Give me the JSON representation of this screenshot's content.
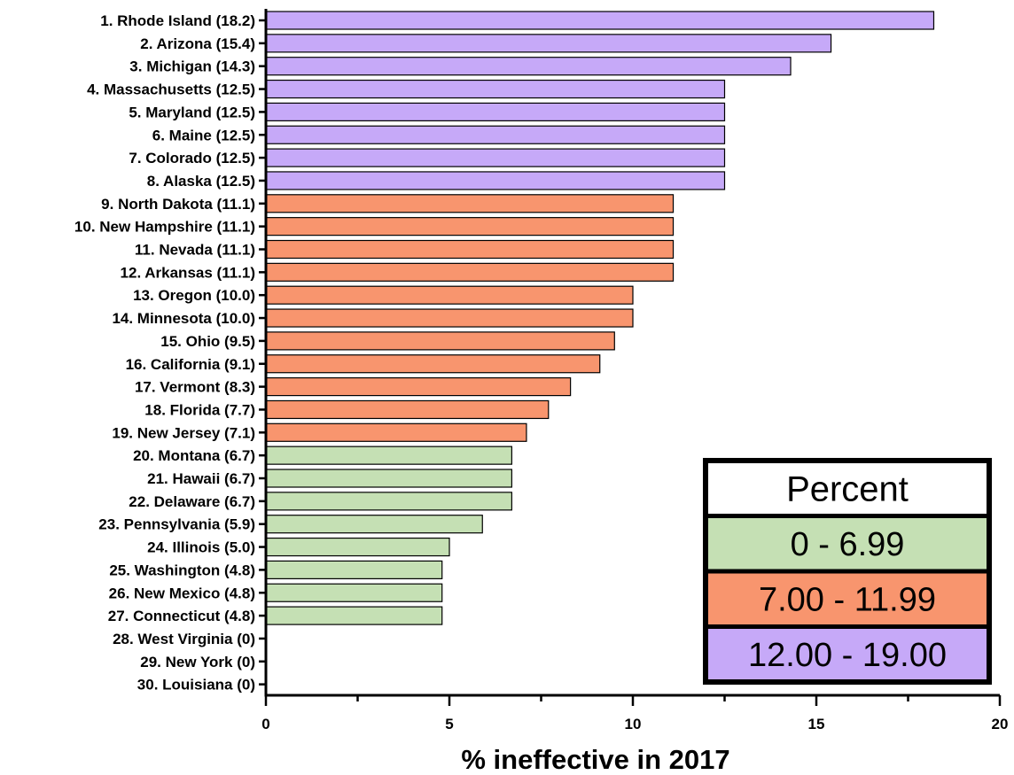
{
  "chart_data": {
    "type": "bar",
    "orientation": "horizontal",
    "categories": [
      "1. Rhode Island (18.2)",
      "2. Arizona (15.4)",
      "3. Michigan (14.3)",
      "4. Massachusetts (12.5)",
      "5. Maryland (12.5)",
      "6. Maine (12.5)",
      "7. Colorado (12.5)",
      "8. Alaska (12.5)",
      "9. North Dakota (11.1)",
      "10. New Hampshire (11.1)",
      "11. Nevada (11.1)",
      "12. Arkansas (11.1)",
      "13. Oregon (10.0)",
      "14. Minnesota (10.0)",
      "15. Ohio (9.5)",
      "16. California (9.1)",
      "17. Vermont (8.3)",
      "18. Florida (7.7)",
      "19. New Jersey (7.1)",
      "20. Montana (6.7)",
      "21. Hawaii (6.7)",
      "22. Delaware (6.7)",
      "23. Pennsylvania (5.9)",
      "24. Illinois (5.0)",
      "25. Washington (4.8)",
      "26. New Mexico (4.8)",
      "27. Connecticut (4.8)",
      "28. West Virginia (0)",
      "29. New York (0)",
      "30. Louisiana (0)"
    ],
    "values": [
      18.2,
      15.4,
      14.3,
      12.5,
      12.5,
      12.5,
      12.5,
      12.5,
      11.1,
      11.1,
      11.1,
      11.1,
      10.0,
      10.0,
      9.5,
      9.1,
      8.3,
      7.7,
      7.1,
      6.7,
      6.7,
      6.7,
      5.9,
      5.0,
      4.8,
      4.8,
      4.8,
      0,
      0,
      0
    ],
    "xlabel": "% ineffective in 2017",
    "xlim": [
      0,
      20
    ],
    "xticks": [
      0,
      5,
      10,
      15,
      20
    ],
    "grid": false,
    "legend": {
      "placement": "bottom-right",
      "title": "Percent",
      "entries": [
        {
          "label": "0 - 6.99",
          "min": 0,
          "max": 6.99,
          "color": "#c5e0b4"
        },
        {
          "label": "7.00 - 11.99",
          "min": 7.0,
          "max": 11.99,
          "color": "#f8956e"
        },
        {
          "label": "12.00 - 19.00",
          "min": 12.0,
          "max": 19.0,
          "color": "#c6a9f8"
        }
      ]
    }
  }
}
